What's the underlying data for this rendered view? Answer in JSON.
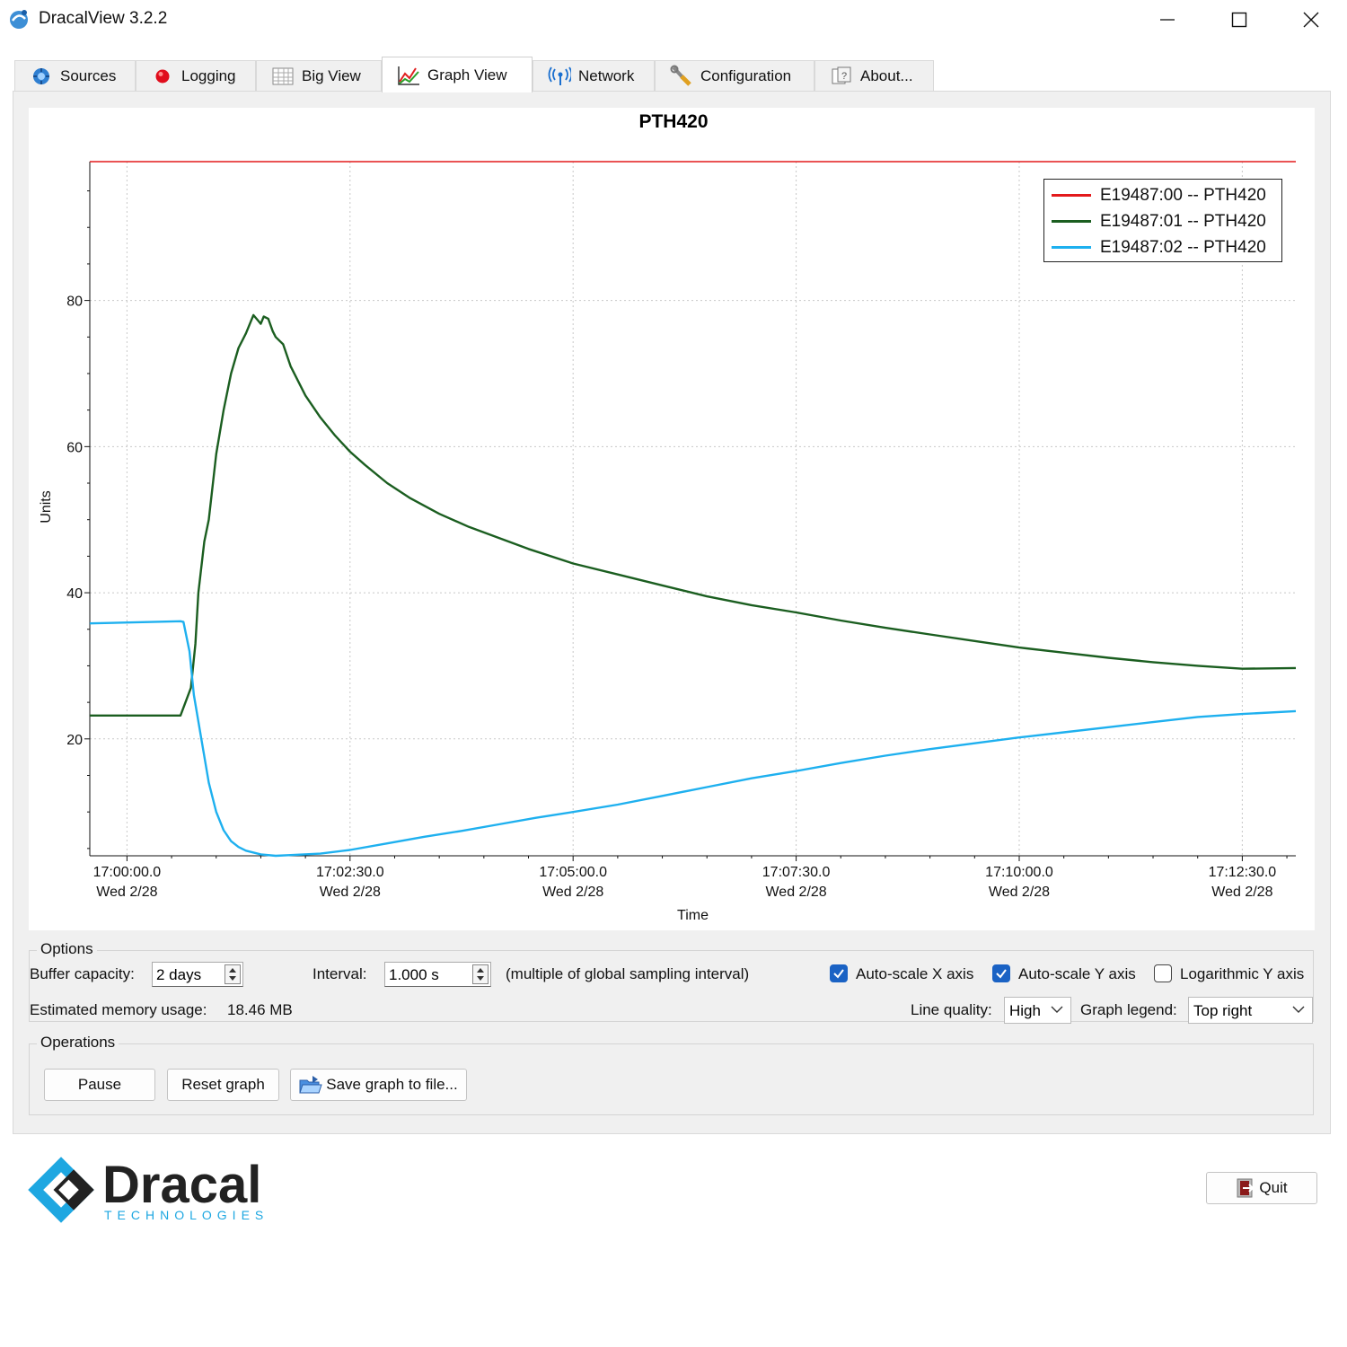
{
  "window": {
    "title": "DracalView 3.2.2"
  },
  "tabs": [
    {
      "label": "Sources",
      "icon": "sources-icon"
    },
    {
      "label": "Logging",
      "icon": "record-dot-icon"
    },
    {
      "label": "Big View",
      "icon": "table-icon"
    },
    {
      "label": "Graph View",
      "icon": "graph-icon",
      "active": true
    },
    {
      "label": "Network",
      "icon": "antenna-icon"
    },
    {
      "label": "Configuration",
      "icon": "tools-icon"
    },
    {
      "label": "About...",
      "icon": "about-icon"
    }
  ],
  "chart_data": {
    "type": "line",
    "title": "PTH420",
    "xlabel": "Time",
    "ylabel": "Units",
    "x_tick_labels": [
      [
        "17:00:00.0",
        "Wed 2/28"
      ],
      [
        "17:02:30.0",
        "Wed 2/28"
      ],
      [
        "17:05:00.0",
        "Wed 2/28"
      ],
      [
        "17:07:30.0",
        "Wed 2/28"
      ],
      [
        "17:10:00.0",
        "Wed 2/28"
      ],
      [
        "17:12:30.0",
        "Wed 2/28"
      ]
    ],
    "x_ticks_seconds": [
      0,
      150,
      300,
      450,
      600,
      750
    ],
    "xlim_seconds": [
      -25,
      786
    ],
    "y_ticks": [
      20,
      40,
      60,
      80
    ],
    "ylim": [
      4,
      99
    ],
    "grid": true,
    "legend_position": "top-right",
    "series": [
      {
        "name": "E19487:00 -- PTH420",
        "color": "#e31a1c",
        "x": [
          -25,
          786
        ],
        "y": [
          99,
          99
        ]
      },
      {
        "name": "E19487:01 -- PTH420",
        "color": "#1b5e20",
        "x": [
          -25,
          10,
          36,
          43,
          46,
          48,
          52,
          55,
          60,
          65,
          70,
          75,
          80,
          85,
          88,
          90,
          92,
          95,
          98,
          100,
          105,
          110,
          120,
          130,
          140,
          150,
          160,
          175,
          190,
          210,
          230,
          250,
          270,
          300,
          330,
          360,
          390,
          420,
          450,
          480,
          510,
          540,
          570,
          600,
          630,
          660,
          690,
          720,
          750,
          786
        ],
        "y": [
          23.2,
          23.2,
          23.2,
          27,
          33,
          40,
          47,
          50,
          59,
          65,
          70,
          73.5,
          75.5,
          78,
          77.3,
          76.8,
          77.8,
          77.5,
          75.8,
          75,
          74,
          71,
          67,
          64,
          61.5,
          59.3,
          57.5,
          55,
          53,
          50.8,
          49,
          47.5,
          46,
          44,
          42.5,
          41,
          39.5,
          38.3,
          37.3,
          36.2,
          35.2,
          34.3,
          33.4,
          32.5,
          31.8,
          31.1,
          30.5,
          30.0,
          29.6,
          29.7
        ]
      },
      {
        "name": "E19487:02 -- PTH420",
        "color": "#1eb0ef",
        "x": [
          -25,
          36,
          38,
          42,
          45,
          50,
          55,
          60,
          65,
          70,
          75,
          80,
          90,
          100,
          110,
          130,
          150,
          175,
          200,
          225,
          250,
          275,
          300,
          330,
          360,
          390,
          420,
          450,
          480,
          510,
          540,
          570,
          600,
          630,
          660,
          690,
          720,
          750,
          786
        ],
        "y": [
          35.8,
          36.1,
          36.0,
          32,
          26,
          20,
          14,
          10,
          7.5,
          6.0,
          5.2,
          4.7,
          4.2,
          4.0,
          4.1,
          4.3,
          4.8,
          5.7,
          6.6,
          7.4,
          8.3,
          9.2,
          10.0,
          11.0,
          12.2,
          13.4,
          14.6,
          15.6,
          16.7,
          17.7,
          18.6,
          19.4,
          20.2,
          20.9,
          21.6,
          22.3,
          23.0,
          23.4,
          23.8
        ]
      }
    ]
  },
  "options": {
    "group_title": "Options",
    "buffer_label": "Buffer capacity:",
    "buffer_value": "2 days",
    "interval_label": "Interval:",
    "interval_value": "1.000 s",
    "interval_note": "(multiple of global sampling interval)",
    "autoscale_x_label": "Auto-scale X axis",
    "autoscale_x": true,
    "autoscale_y_label": "Auto-scale Y axis",
    "autoscale_y": true,
    "log_y_label": "Logarithmic Y axis",
    "log_y": false,
    "memory_label": "Estimated memory usage:",
    "memory_value": "18.46 MB",
    "line_quality_label": "Line quality:",
    "line_quality_value": "High",
    "graph_legend_label": "Graph legend:",
    "graph_legend_value": "Top right"
  },
  "operations": {
    "group_title": "Operations",
    "pause_label": "Pause",
    "reset_label": "Reset graph",
    "save_label": "Save graph to file..."
  },
  "footer": {
    "logo_word": "Dracal",
    "logo_sub": "TECHNOLOGIES",
    "quit_label": "Quit"
  },
  "colors": {
    "accent": "#1a62c4",
    "logo_blue": "#1ea7e1",
    "logo_dark": "#222222"
  }
}
